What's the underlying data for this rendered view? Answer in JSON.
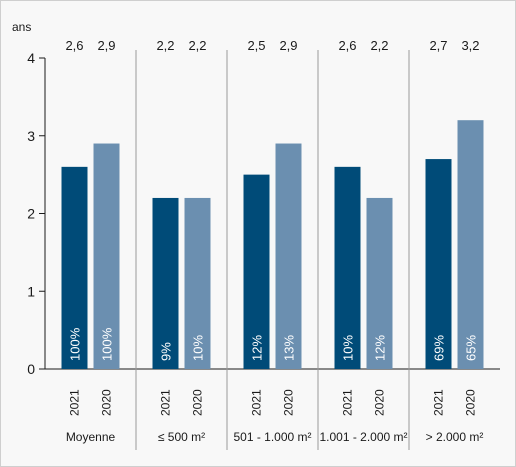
{
  "chart_data": {
    "type": "bar",
    "ylabel": "ans",
    "ylim": [
      0,
      4
    ],
    "yticks": [
      0,
      1,
      2,
      3,
      4
    ],
    "colors": {
      "2021": "#004b78",
      "2020": "#6b8fb0"
    },
    "groups": [
      {
        "category": "Moyenne",
        "bars": [
          {
            "year": "2021",
            "value": 2.6,
            "label": "2,6",
            "share": "100%"
          },
          {
            "year": "2020",
            "value": 2.9,
            "label": "2,9",
            "share": "100%"
          }
        ]
      },
      {
        "category": "≤ 500 m²",
        "bars": [
          {
            "year": "2021",
            "value": 2.2,
            "label": "2,2",
            "share": "9%"
          },
          {
            "year": "2020",
            "value": 2.2,
            "label": "2,2",
            "share": "10%"
          }
        ]
      },
      {
        "category": "501 - 1.000 m²",
        "bars": [
          {
            "year": "2021",
            "value": 2.5,
            "label": "2,5",
            "share": "12%"
          },
          {
            "year": "2020",
            "value": 2.9,
            "label": "2,9",
            "share": "13%"
          }
        ]
      },
      {
        "category": "1.001 - 2.000 m²",
        "bars": [
          {
            "year": "2021",
            "value": 2.6,
            "label": "2,6",
            "share": "10%"
          },
          {
            "year": "2020",
            "value": 2.2,
            "label": "2,2",
            "share": "12%"
          }
        ]
      },
      {
        "category": "> 2.000 m²",
        "bars": [
          {
            "year": "2021",
            "value": 2.7,
            "label": "2,7",
            "share": "69%"
          },
          {
            "year": "2020",
            "value": 3.2,
            "label": "3,2",
            "share": "65%"
          }
        ]
      }
    ]
  }
}
